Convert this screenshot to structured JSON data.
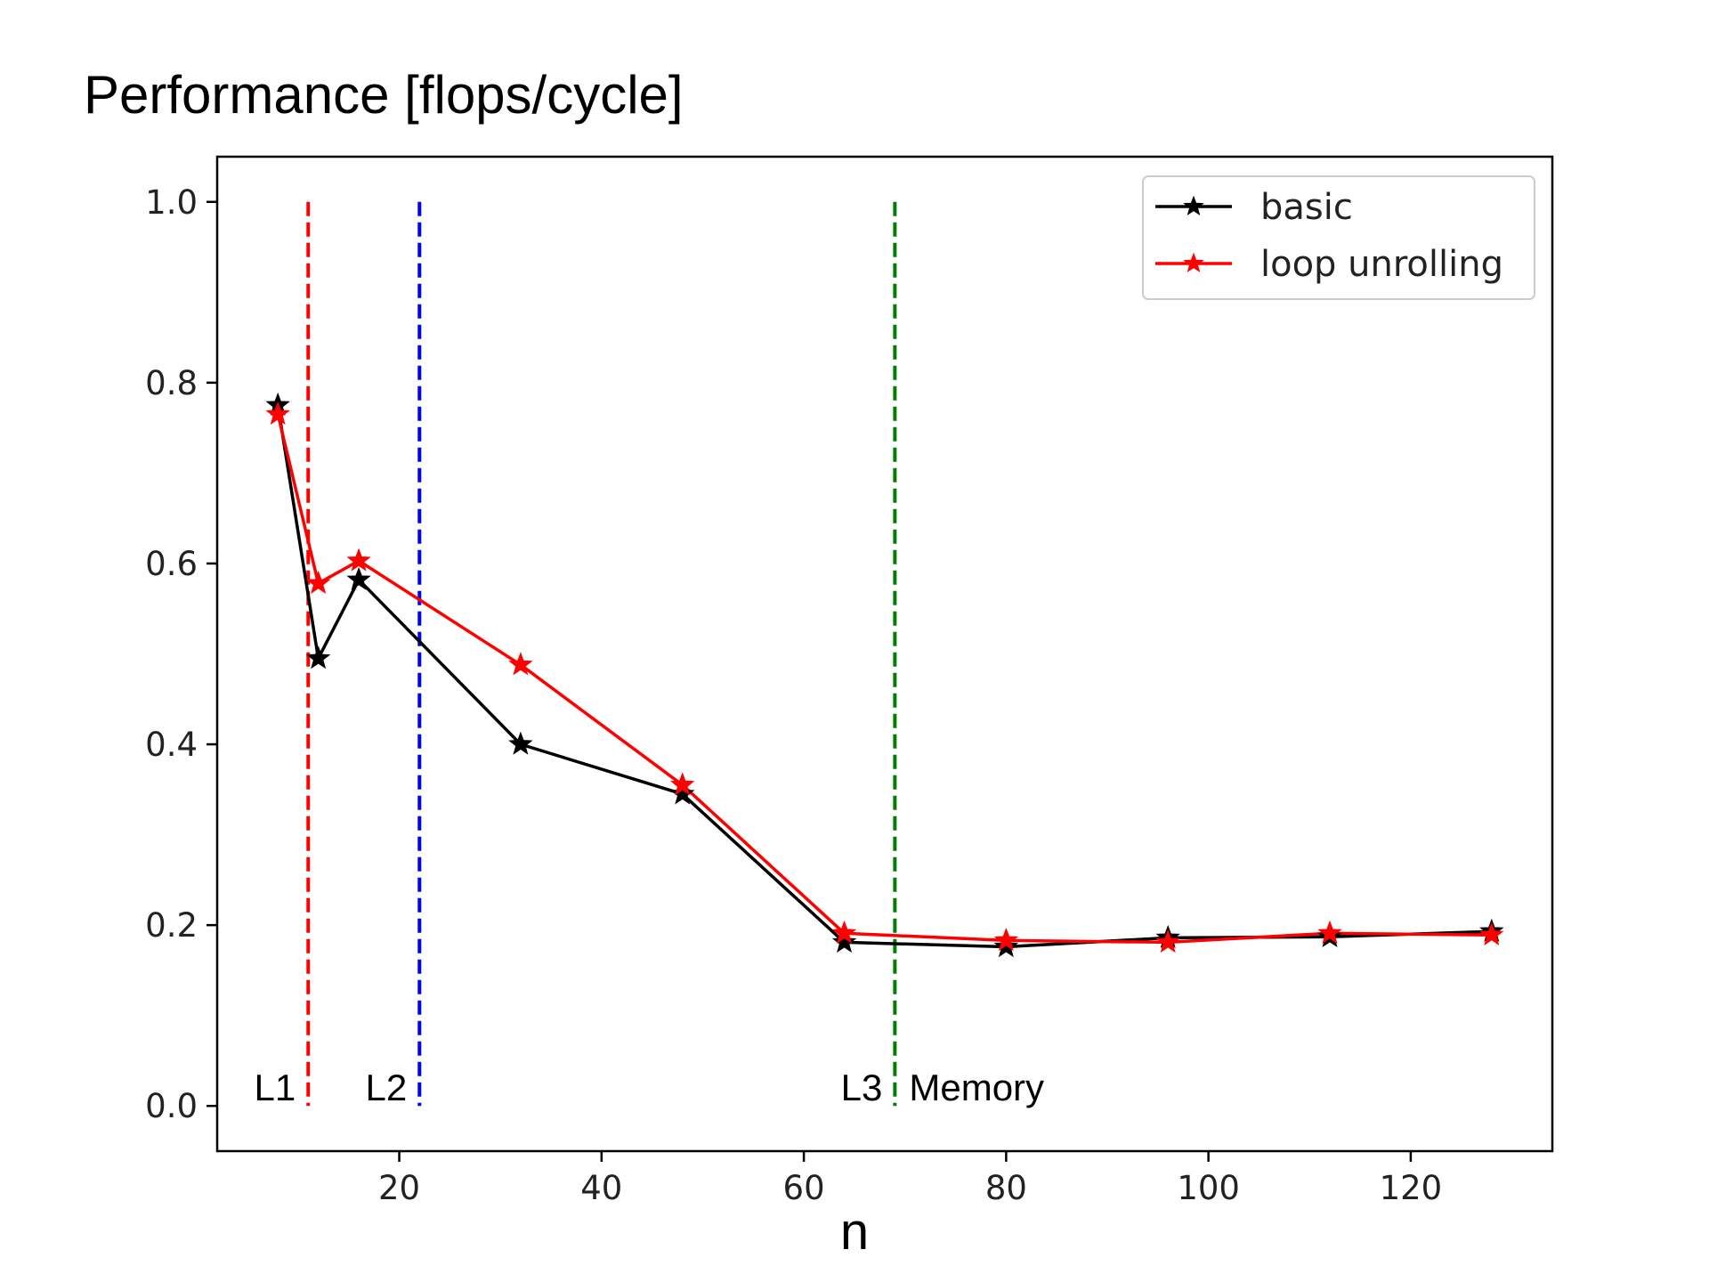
{
  "chart_data": {
    "type": "line",
    "title": "Performance [flops/cycle]",
    "xlabel": "n",
    "ylabel": "",
    "xlim": [
      2,
      134
    ],
    "ylim": [
      -0.05,
      1.05
    ],
    "x_ticks": [
      20,
      40,
      60,
      80,
      100,
      120
    ],
    "y_ticks": [
      "0.0",
      "0.2",
      "0.4",
      "0.6",
      "0.8",
      "1.0"
    ],
    "grid": false,
    "legend_position": "top-right",
    "series": [
      {
        "name": "basic",
        "color": "#000000",
        "marker": "star",
        "x": [
          8,
          12,
          16,
          32,
          48,
          64,
          80,
          96,
          112,
          128
        ],
        "y": [
          0.775,
          0.495,
          0.582,
          0.4,
          0.345,
          0.181,
          0.176,
          0.186,
          0.187,
          0.193
        ]
      },
      {
        "name": "loop unrolling",
        "color": "#ff0000",
        "marker": "star",
        "x": [
          8,
          12,
          16,
          32,
          48,
          64,
          80,
          96,
          112,
          128
        ],
        "y": [
          0.765,
          0.578,
          0.603,
          0.488,
          0.355,
          0.191,
          0.183,
          0.181,
          0.191,
          0.189
        ]
      }
    ],
    "reference_lines": [
      {
        "x": 11,
        "color": "#ff0000",
        "label_left": "L1"
      },
      {
        "x": 22,
        "color": "#0000ff",
        "label_left": "L2"
      },
      {
        "x": 69,
        "color": "#008000",
        "label_left": "L3",
        "label_right": "Memory"
      }
    ]
  }
}
